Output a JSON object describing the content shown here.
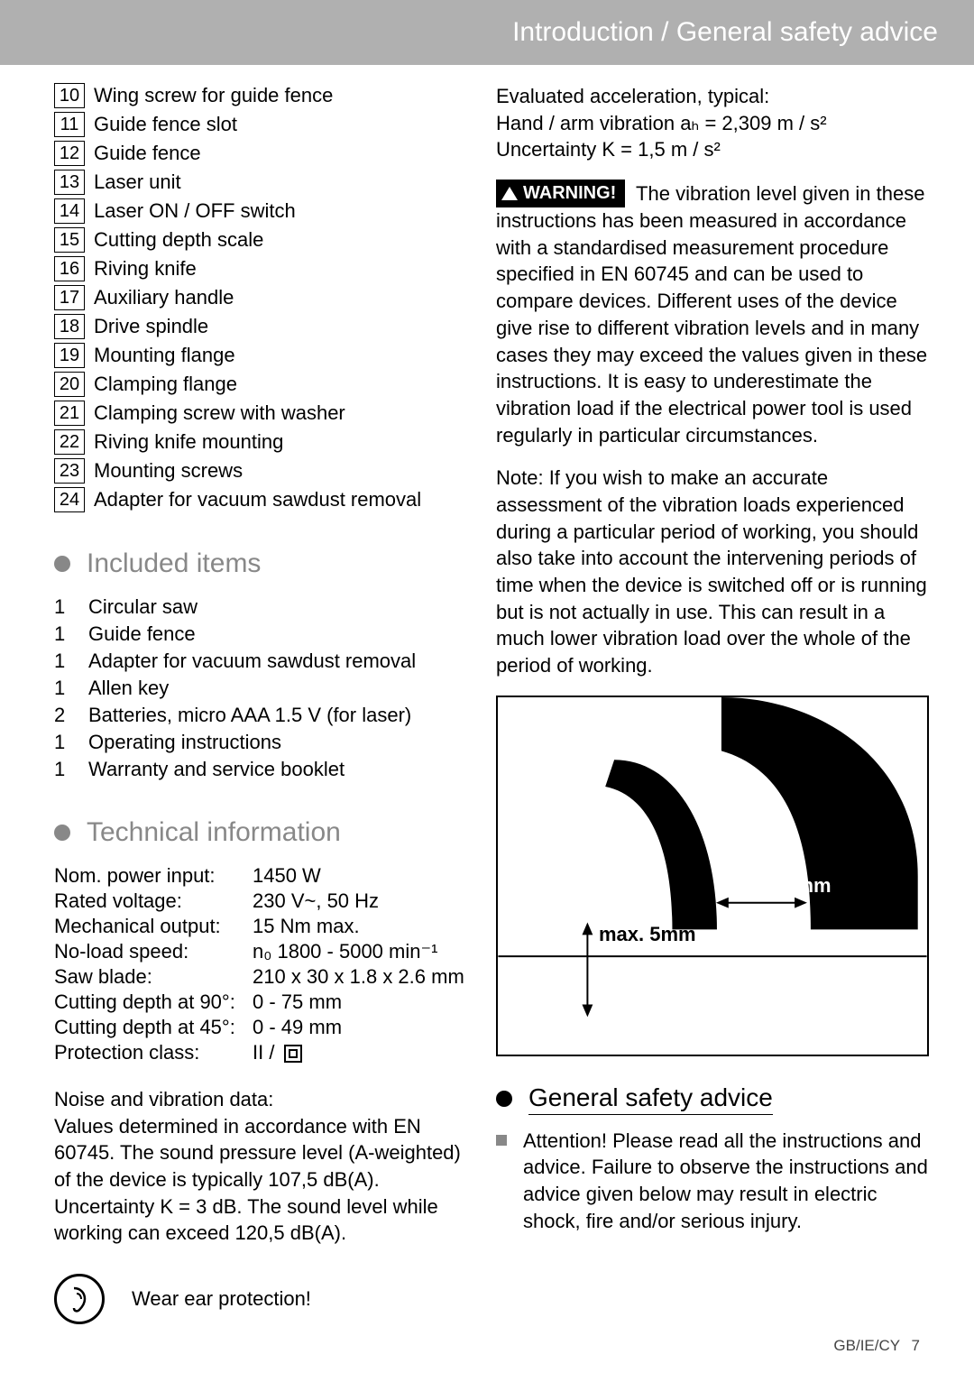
{
  "header": {
    "title": "Introduction / General safety advice"
  },
  "numbered_parts": [
    {
      "n": "10",
      "text": "Wing screw for guide fence"
    },
    {
      "n": "11",
      "text": "Guide fence slot"
    },
    {
      "n": "12",
      "text": "Guide fence"
    },
    {
      "n": "13",
      "text": "Laser unit"
    },
    {
      "n": "14",
      "text": "Laser ON / OFF switch"
    },
    {
      "n": "15",
      "text": "Cutting depth scale"
    },
    {
      "n": "16",
      "text": "Riving knife"
    },
    {
      "n": "17",
      "text": "Auxiliary handle"
    },
    {
      "n": "18",
      "text": "Drive spindle"
    },
    {
      "n": "19",
      "text": "Mounting flange"
    },
    {
      "n": "20",
      "text": "Clamping flange"
    },
    {
      "n": "21",
      "text": "Clamping screw with washer"
    },
    {
      "n": "22",
      "text": "Riving knife mounting"
    },
    {
      "n": "23",
      "text": "Mounting screws"
    },
    {
      "n": "24",
      "text": "Adapter for vacuum sawdust removal"
    }
  ],
  "sections": {
    "included_title": "Included items",
    "technical_title": "Technical information",
    "gsa_title": "General safety advice"
  },
  "included_items": [
    {
      "qty": "1",
      "text": "Circular saw"
    },
    {
      "qty": "1",
      "text": "Guide fence"
    },
    {
      "qty": "1",
      "text": "Adapter for vacuum sawdust removal"
    },
    {
      "qty": "1",
      "text": "Allen key"
    },
    {
      "qty": "2",
      "text": "Batteries, micro AAA 1.5 V (for laser)"
    },
    {
      "qty": "1",
      "text": "Operating instructions"
    },
    {
      "qty": "1",
      "text": " Warranty and service  booklet"
    }
  ],
  "technical": [
    {
      "label": "Nom. power input:",
      "value": "1450 W"
    },
    {
      "label": "Rated voltage:",
      "value": "230 V~, 50 Hz"
    },
    {
      "label": "Mechanical output:",
      "value": "15 Nm max."
    },
    {
      "label": "No-load speed:",
      "value": "n₀ 1800 - 5000 min⁻¹"
    },
    {
      "label": "Saw blade:",
      "value": "210 x 30 x 1.8 x 2.6 mm"
    },
    {
      "label": "Cutting depth at 90°:",
      "value": "0 - 75 mm"
    },
    {
      "label": "Cutting depth at 45°:",
      "value": "0 - 49 mm"
    },
    {
      "label": "Protection class:",
      "value": "II / "
    }
  ],
  "noise_para_title": "Noise and vibration data:",
  "noise_para": "Values determined in accordance with EN 60745. The sound pressure level (A-weighted) of the device is typically 107,5 dB(A). Uncertainty K = 3 dB. The sound level while working can exceed 120,5 dB(A).",
  "ear_text": "Wear ear protection!",
  "right": {
    "accel_line1": "Evaluated acceleration, typical:",
    "accel_line2": "Hand / arm vibration aₕ = 2,309 m / s²",
    "accel_line3": "Uncertainty K = 1,5 m / s²",
    "warning_label": "WARNING!",
    "warning_para": "The vibration level given in these instructions has been measured in accordance with a standardised measurement procedure specified in EN 60745 and can be used to compare devices. Different uses of the device give rise to different vibration levels and in many cases they may exceed the values given in these instructions. It is easy to underestimate the vibration load if the electrical power tool is used regularly in particular circumstances.",
    "note_para": "Note: If you wish to make an accurate assessment of the vibration loads experienced during a particular period of working, you should also take into account the intervening periods of time when the device is switched off or is running but is not actually in use. This can result in a much lower vibration load over the whole of the period of working.",
    "figure_label1": "max. 5mm",
    "figure_label2": "max. 5mm",
    "advice_item": "Attention!  Please read all the instructions and advice. Failure to observe the instructions and advice given below may result in electric shock, fire and/or serious injury."
  },
  "footer": {
    "region": "GB/IE/CY",
    "page": "7"
  },
  "colors": {
    "header_bg": "#b0b0b0",
    "header_text": "#ffffff",
    "section_grey": "#888888",
    "text": "#000000"
  }
}
